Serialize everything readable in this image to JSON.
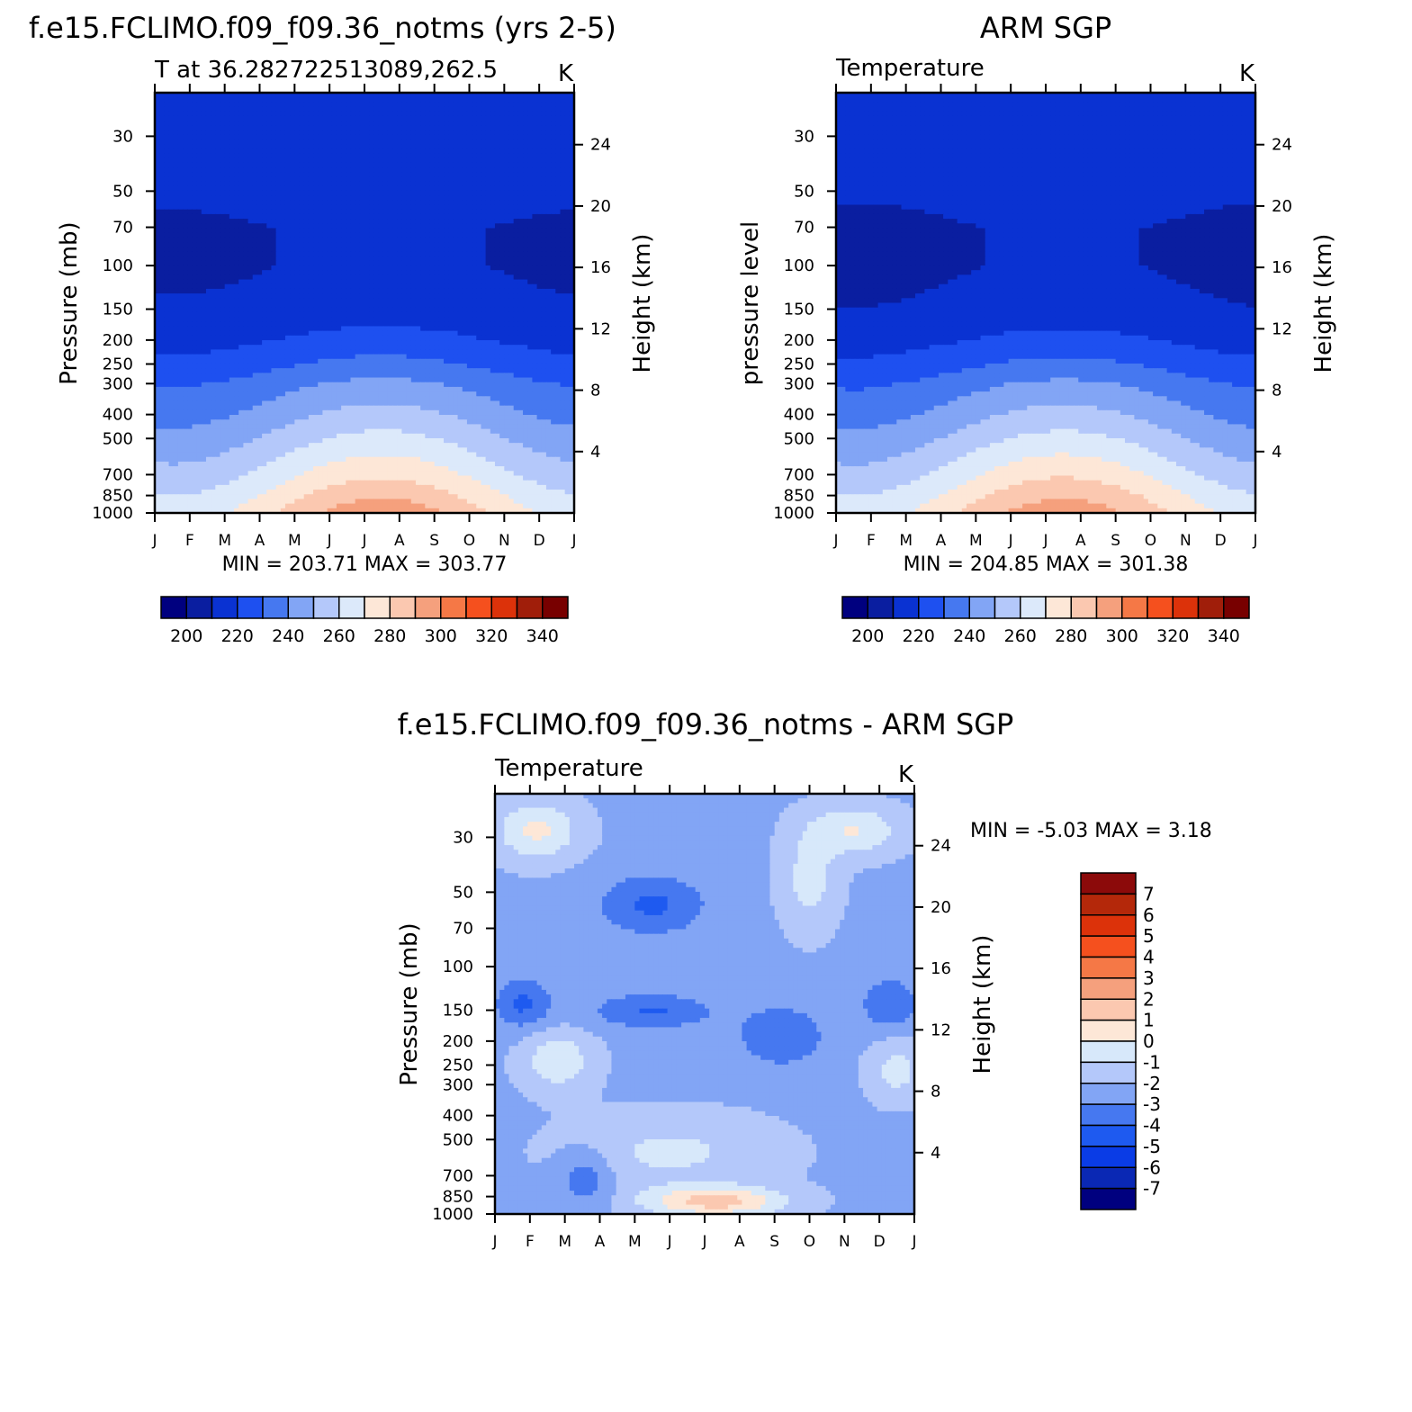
{
  "colors": {
    "temperature_scale": [
      "#00007f",
      "#0a1ea0",
      "#0a32d2",
      "#1e50f0",
      "#4678f0",
      "#82a5f5",
      "#b4c8fa",
      "#dce9fa",
      "#fde7d7",
      "#fbc8b0",
      "#f5a07d",
      "#f57846",
      "#f5501e",
      "#dc320a",
      "#a01e0a",
      "#780000"
    ],
    "difference_scale": [
      "#00007f",
      "#0a28b4",
      "#0a3ce6",
      "#1e5af0",
      "#4678f0",
      "#82a5f5",
      "#b4c8fa",
      "#d7e8fa",
      "#fde7d7",
      "#fbc8b0",
      "#f5a07d",
      "#f57846",
      "#f5501e",
      "#dc320a",
      "#b4280a",
      "#8c0a0a"
    ]
  },
  "chart_data": [
    {
      "id": "model",
      "type": "heatmap",
      "title": "f.e15.FCLIMO.f09_f09.36_notms (yrs 2-5)",
      "subtitle_left": "T at 36.282722513089,262.5",
      "subtitle_right": "K",
      "ylabel": "Pressure (mb)",
      "y2label": "Height (km)",
      "x": [
        "J",
        "F",
        "M",
        "A",
        "M",
        "J",
        "J",
        "A",
        "S",
        "O",
        "N",
        "D",
        "J"
      ],
      "pressure_ticks": [
        30,
        50,
        70,
        100,
        150,
        200,
        250,
        300,
        400,
        500,
        700,
        850,
        1000
      ],
      "pressure_range": [
        20,
        1000
      ],
      "height_ticks": [
        4,
        8,
        12,
        16,
        20,
        24
      ],
      "min_max_text": "MIN = 203.71 MAX = 303.77",
      "min": 203.71,
      "max": 303.77,
      "colorbar": {
        "orientation": "horizontal",
        "boundaries": [
          190,
          200,
          210,
          220,
          230,
          240,
          250,
          260,
          270,
          280,
          290,
          300,
          310,
          320,
          330,
          340,
          350
        ],
        "labels": [
          "200",
          "220",
          "240",
          "260",
          "280",
          "300",
          "320",
          "340"
        ]
      }
    },
    {
      "id": "obs",
      "type": "heatmap",
      "title": "ARM SGP",
      "subtitle_left": "Temperature",
      "subtitle_right": "K",
      "ylabel": "pressure level",
      "y2label": "Height (km)",
      "x": [
        "J",
        "F",
        "M",
        "A",
        "M",
        "J",
        "J",
        "A",
        "S",
        "O",
        "N",
        "D",
        "J"
      ],
      "pressure_ticks": [
        30,
        50,
        70,
        100,
        150,
        200,
        250,
        300,
        400,
        500,
        700,
        850,
        1000
      ],
      "pressure_range": [
        20,
        1000
      ],
      "height_ticks": [
        4,
        8,
        12,
        16,
        20,
        24
      ],
      "min_max_text": "MIN = 204.85 MAX = 301.38",
      "min": 204.85,
      "max": 301.38,
      "colorbar": {
        "orientation": "horizontal",
        "boundaries": [
          190,
          200,
          210,
          220,
          230,
          240,
          250,
          260,
          270,
          280,
          290,
          300,
          310,
          320,
          330,
          340,
          350
        ],
        "labels": [
          "200",
          "220",
          "240",
          "260",
          "280",
          "300",
          "320",
          "340"
        ]
      }
    },
    {
      "id": "diff",
      "type": "heatmap",
      "title": "f.e15.FCLIMO.f09_f09.36_notms - ARM SGP",
      "subtitle_left": "Temperature",
      "subtitle_right": "K",
      "ylabel": "Pressure (mb)",
      "y2label": "Height (km)",
      "x": [
        "J",
        "F",
        "M",
        "A",
        "M",
        "J",
        "J",
        "A",
        "S",
        "O",
        "N",
        "D",
        "J"
      ],
      "pressure_ticks": [
        30,
        50,
        70,
        100,
        150,
        200,
        250,
        300,
        400,
        500,
        700,
        850,
        1000
      ],
      "pressure_range": [
        20,
        1000
      ],
      "height_ticks": [
        4,
        8,
        12,
        16,
        20,
        24
      ],
      "min_max_text": "MIN = -5.03 MAX = 3.18",
      "min": -5.03,
      "max": 3.18,
      "colorbar": {
        "orientation": "vertical",
        "boundaries": [
          -8,
          -7,
          -6,
          -5,
          -4,
          -3,
          -2,
          -1,
          0,
          1,
          2,
          3,
          4,
          5,
          6,
          7,
          8
        ],
        "labels": [
          "7",
          "6",
          "5",
          "4",
          "3",
          "2",
          "1",
          "0",
          "-1",
          "-2",
          "-3",
          "-4",
          "-5",
          "-6",
          "-7"
        ]
      }
    }
  ]
}
